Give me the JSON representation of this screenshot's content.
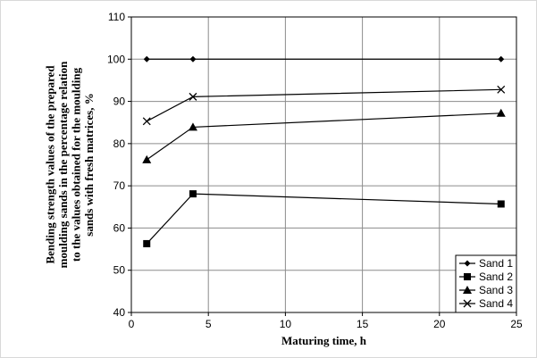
{
  "chart_data": {
    "type": "line",
    "xlabel": "Maturing time, h",
    "ylabel_lines": [
      "Bending strength values of the prepared",
      "moulding sands in the percentage relation",
      "to the values obtained for the moulding",
      "sands with fresh matrices, %"
    ],
    "xlim": [
      0,
      25
    ],
    "ylim": [
      40,
      110
    ],
    "xticks": [
      0,
      5,
      10,
      15,
      20,
      25
    ],
    "yticks": [
      40,
      50,
      60,
      70,
      80,
      90,
      100,
      110
    ],
    "grid": true,
    "legend_position": "bottom-right",
    "x": [
      1,
      4,
      24
    ],
    "series": [
      {
        "name": "Sand 1",
        "marker": "diamond",
        "values": [
          100,
          100,
          100
        ]
      },
      {
        "name": "Sand 2",
        "marker": "square",
        "values": [
          56.3,
          68.1,
          65.7
        ]
      },
      {
        "name": "Sand 3",
        "marker": "triangle",
        "values": [
          76.2,
          83.9,
          87.2
        ]
      },
      {
        "name": "Sand 4",
        "marker": "x",
        "values": [
          85.3,
          91.1,
          92.8
        ]
      }
    ]
  }
}
